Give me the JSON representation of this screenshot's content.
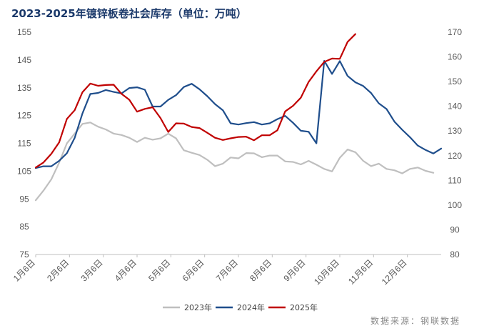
{
  "title": "2023-2025年镀锌板卷社会库存（单位：万吨）",
  "source": "数据来源：钢联数据",
  "chart_data": {
    "type": "line",
    "title": "2023-2025年镀锌板卷社会库存（单位：万吨）",
    "x_tick_labels": [
      "1月6日",
      "2月6日",
      "3月6日",
      "4月6日",
      "5月6日",
      "6月6日",
      "7月6日",
      "8月6日",
      "9月6日",
      "10月6日",
      "11月6日",
      "12月6日"
    ],
    "y_left": {
      "ticks": [
        75,
        85,
        95,
        105,
        115,
        125,
        135,
        145,
        155
      ],
      "range": [
        75,
        155
      ]
    },
    "y_right": {
      "ticks": [
        80,
        90,
        100,
        110,
        120,
        130,
        140,
        150,
        160,
        170
      ],
      "range": [
        80,
        170
      ]
    },
    "grid": false,
    "legend_position": "bottom",
    "colors": {
      "2023年": "#bfbfbf",
      "2024年": "#1f4e8c",
      "2025年": "#c00000"
    },
    "series": [
      {
        "name": "2023年",
        "axis": "left",
        "values": [
          94.5,
          98,
          102,
          108,
          115,
          118.5,
          122,
          122.5,
          121,
          120,
          118.5,
          118,
          117,
          115.5,
          117,
          116.3,
          116.8,
          118.5,
          116.8,
          112.5,
          111.6,
          110.8,
          109.1,
          106.8,
          107.7,
          109.9,
          109.6,
          111.5,
          111.4,
          110.0,
          110.6,
          110.6,
          108.5,
          108.3,
          107.4,
          108.7,
          107.3,
          105.8,
          104.9,
          109.8,
          112.8,
          111.8,
          108.7,
          106.8,
          107.7,
          105.8,
          105.3,
          104.2,
          105.8,
          106.3,
          105.1,
          104.4
        ]
      },
      {
        "name": "2024年",
        "axis": "right",
        "values": [
          115,
          115.7,
          115.7,
          117.9,
          121,
          127.2,
          137.1,
          145,
          145.4,
          146.6,
          145.8,
          145.2,
          147.4,
          147.7,
          146.7,
          139.9,
          139.9,
          142.6,
          144.5,
          147.8,
          149.1,
          146.9,
          144.1,
          140.9,
          138.4,
          133.1,
          132.6,
          133.2,
          133.6,
          132.6,
          133.1,
          134.8,
          136.1,
          133.3,
          130.1,
          129.7,
          125,
          158.4,
          153.1,
          158.3,
          152.3,
          149.7,
          148.2,
          145.4,
          141.2,
          138.9,
          133.8,
          130.5,
          127.5,
          124.1,
          122.3,
          120.9,
          122.9
        ]
      },
      {
        "name": "2025年",
        "axis": "left",
        "values": [
          106.3,
          108.1,
          111.2,
          115.3,
          123.8,
          126.9,
          133.4,
          136.5,
          135.7,
          136,
          136.1,
          132.8,
          130.7,
          126.4,
          127.4,
          128,
          124.1,
          119.1,
          122.2,
          122.1,
          120.9,
          120.5,
          118.8,
          117.0,
          116.2,
          116.8,
          117.3,
          117.4,
          116.1,
          117.9,
          117.9,
          119.7,
          126.5,
          128.5,
          131.4,
          137.1,
          140.9,
          144.3,
          145.5,
          145.4,
          151.5,
          154.3
        ]
      }
    ]
  }
}
